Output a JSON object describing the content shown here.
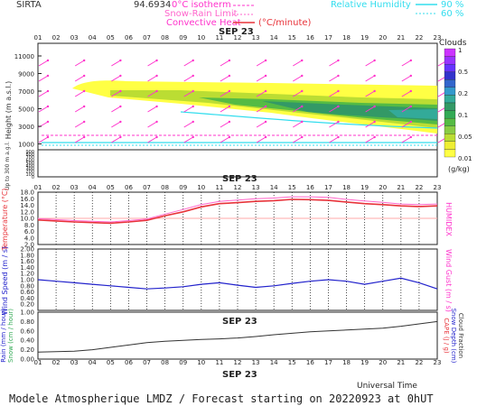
{
  "header": {
    "station": "SIRTA",
    "coords": "94.6934",
    "legend_isotherm": "0°C isotherm",
    "legend_snow_rain": "Snow-Rain Limit",
    "legend_convective": "Convective Heat",
    "legend_conv_unit": "(°C/minute)",
    "legend_rh": "Relative Humidity",
    "rh_90": "90 %",
    "rh_60": "60 %"
  },
  "hours": [
    "01",
    "02",
    "03",
    "04",
    "05",
    "06",
    "07",
    "08",
    "09",
    "10",
    "11",
    "12",
    "13",
    "14",
    "15",
    "16",
    "17",
    "18",
    "19",
    "20",
    "21",
    "22",
    "23"
  ],
  "date_label": "SEP 23",
  "colors": {
    "magenta": "#ff33cc",
    "cyan": "#33ddee",
    "red": "#e8333a",
    "pink": "#ff66cc",
    "blue": "#2222cc",
    "dark": "#333333"
  },
  "clouds_legend": {
    "title": "Clouds",
    "unit": "(g/kg)",
    "levels": [
      "1",
      "0.5",
      "0.2",
      "0.1",
      "0.05",
      "0.01"
    ],
    "colors": [
      "#cc33ff",
      "#9933ff",
      "#6633ff",
      "#3333cc",
      "#3366cc",
      "#3399cc",
      "#33aa99",
      "#339966",
      "#33aa55",
      "#55bb44",
      "#88cc44",
      "#bbdd33",
      "#eeee33",
      "#ffff44"
    ]
  },
  "panel1": {
    "ylabel": "Height (m a.s.l.)",
    "ylabel2": "Up to 300 m a.g.l.",
    "yticks": [
      "11000",
      "9000",
      "7000",
      "5000",
      "3000",
      "1000",
      "900",
      "800",
      "700",
      "600",
      "500",
      "400",
      "300",
      "200",
      "100",
      "0"
    ]
  },
  "panel2": {
    "ylabel_left": "Temperature (°C)",
    "ylabel_right": "HUMIDEX",
    "yticks": [
      "18.0",
      "16.0",
      "14.0",
      "12.0",
      "10.0",
      "8.0",
      "6.0",
      "4.0",
      "2.0"
    ]
  },
  "panel3": {
    "ylabel_left": "Wind Speed (m / s)",
    "ylabel_right": "Wind Gust (m / s)",
    "yticks": [
      "2.00",
      "1.80",
      "1.60",
      "1.40",
      "1.20",
      "1.00",
      "0.80",
      "0.60",
      "0.40",
      "0.20"
    ]
  },
  "panel4": {
    "ylabel_left1": "Rain (mm / hour)",
    "ylabel_left2": "Snow (cm / hour)",
    "ylabel_right1": "CAPE (J / g)",
    "ylabel_right2": "Snow Depth (cm)",
    "ylabel_right3": "Cloud Fraction",
    "yticks": [
      "1.00",
      "0.80",
      "0.60",
      "0.40",
      "0.20",
      "0.00"
    ]
  },
  "footer": {
    "universal_time": "Universal Time",
    "model_text": "Modele Atmospherique LMDZ / Forecast starting on 20220923 at 0hUT"
  },
  "chart_data": [
    {
      "type": "line",
      "name": "temperature",
      "x": [
        1,
        2,
        3,
        4,
        5,
        6,
        7,
        8,
        9,
        10,
        11,
        12,
        13,
        14,
        15,
        16,
        17,
        18,
        19,
        20,
        21,
        22,
        23
      ],
      "series": [
        {
          "name": "Temperature",
          "values": [
            9.5,
            9.2,
            8.9,
            8.7,
            8.5,
            8.9,
            9.4,
            10.8,
            12.0,
            13.5,
            14.5,
            14.8,
            15.2,
            15.4,
            15.8,
            15.7,
            15.5,
            15.0,
            14.5,
            14.2,
            13.8,
            13.6,
            13.8
          ]
        },
        {
          "name": "Humidex",
          "values": [
            9.9,
            9.6,
            9.3,
            9.1,
            8.9,
            9.3,
            9.8,
            11.3,
            12.7,
            14.2,
            15.2,
            15.6,
            16.0,
            16.2,
            16.6,
            16.6,
            16.4,
            15.8,
            15.3,
            14.9,
            14.4,
            14.2,
            14.4
          ]
        }
      ],
      "ylim": [
        2,
        18
      ]
    },
    {
      "type": "line",
      "name": "wind",
      "x": [
        1,
        2,
        3,
        4,
        5,
        6,
        7,
        8,
        9,
        10,
        11,
        12,
        13,
        14,
        15,
        16,
        17,
        18,
        19,
        20,
        21,
        22,
        23
      ],
      "series": [
        {
          "name": "Wind Speed",
          "values": [
            1.0,
            0.95,
            0.9,
            0.85,
            0.8,
            0.75,
            0.7,
            0.73,
            0.77,
            0.85,
            0.9,
            0.82,
            0.75,
            0.8,
            0.88,
            0.95,
            1.0,
            0.95,
            0.85,
            0.95,
            1.05,
            0.9,
            0.7
          ]
        }
      ],
      "ylim": [
        0,
        2
      ]
    },
    {
      "type": "line",
      "name": "cloud_fraction",
      "x": [
        1,
        2,
        3,
        4,
        5,
        6,
        7,
        8,
        9,
        10,
        11,
        12,
        13,
        14,
        15,
        16,
        17,
        18,
        19,
        20,
        21,
        22,
        23
      ],
      "series": [
        {
          "name": "Cloud Fraction",
          "values": [
            0.15,
            0.16,
            0.17,
            0.2,
            0.25,
            0.3,
            0.35,
            0.38,
            0.4,
            0.42,
            0.43,
            0.45,
            0.48,
            0.52,
            0.55,
            0.58,
            0.6,
            0.62,
            0.64,
            0.66,
            0.7,
            0.75,
            0.8
          ]
        }
      ],
      "ylim": [
        0,
        1
      ]
    }
  ]
}
